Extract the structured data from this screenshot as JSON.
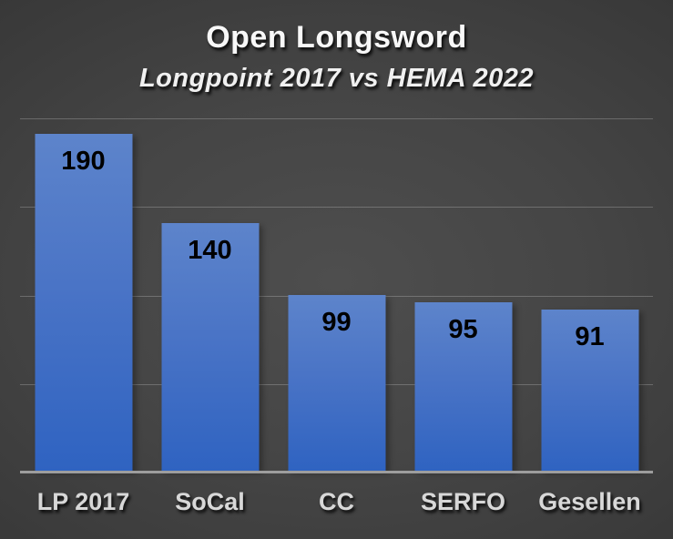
{
  "title": "Open Longsword",
  "subtitle": "Longpoint 2017 vs HEMA 2022",
  "colors": {
    "bar_top": "#5d84cb",
    "bar_bottom": "#2f63c1",
    "background_center": "#4e4e4e",
    "background_edge": "#222222",
    "gridline": "rgba(255,255,255,0.22)",
    "baseline": "#9d9d9d",
    "title_text": "#f8f8f8",
    "category_text": "#d8d8d8",
    "value_text": "#000000"
  },
  "chart_data": {
    "type": "bar",
    "title": "Open Longsword",
    "subtitle": "Longpoint 2017 vs HEMA 2022",
    "categories": [
      "LP 2017",
      "SoCal",
      "CC",
      "SERFO",
      "Gesellen"
    ],
    "values": [
      190,
      140,
      99,
      95,
      91
    ],
    "data_labels": [
      "190",
      "140",
      "99",
      "95",
      "91"
    ],
    "xlabel": "",
    "ylabel": "",
    "ylim": [
      0,
      200
    ],
    "gridline_interval": 50,
    "grid": true,
    "legend": false,
    "tick_labels_y": []
  }
}
